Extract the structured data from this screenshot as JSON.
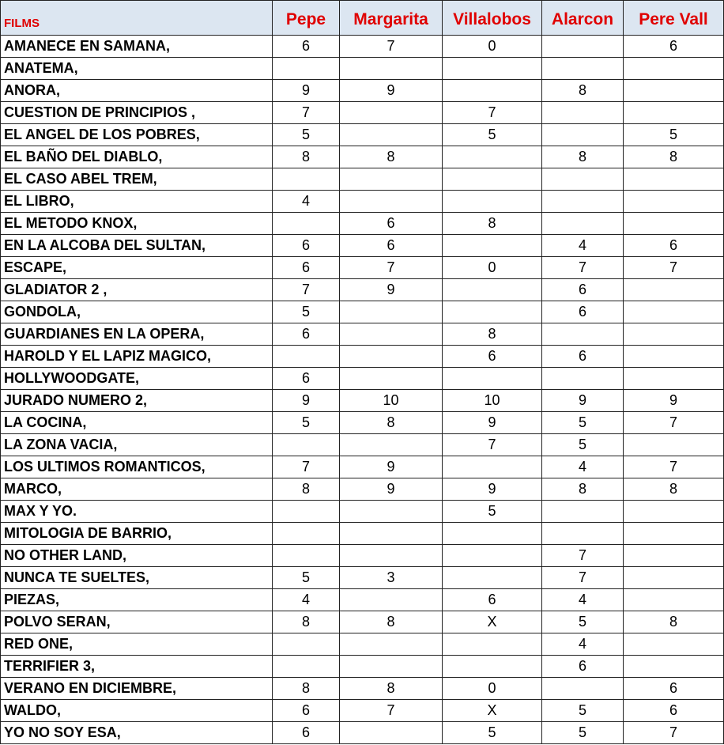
{
  "table": {
    "header": [
      "FILMS",
      "Pepe",
      "Margarita",
      "Villalobos",
      "Alarcon",
      "Pere Vall"
    ],
    "rows": [
      [
        "AMANECE EN SAMANA,",
        6,
        7,
        0,
        null,
        6
      ],
      [
        "ANATEMA,",
        null,
        null,
        null,
        null,
        null
      ],
      [
        "ANORA,",
        9,
        9,
        null,
        8,
        null
      ],
      [
        "CUESTION DE PRINCIPIOS ,",
        7,
        null,
        7,
        null,
        null
      ],
      [
        "EL ANGEL DE LOS POBRES,",
        5,
        null,
        5,
        null,
        5
      ],
      [
        "EL BAÑO DEL DIABLO,",
        8,
        8,
        null,
        8,
        8
      ],
      [
        "EL CASO ABEL TREM,",
        null,
        null,
        null,
        null,
        null
      ],
      [
        "EL LIBRO,",
        4,
        null,
        null,
        null,
        null
      ],
      [
        "EL METODO KNOX,",
        null,
        6,
        8,
        null,
        null
      ],
      [
        "EN LA ALCOBA DEL SULTAN,",
        6,
        6,
        null,
        4,
        6
      ],
      [
        "ESCAPE,",
        6,
        7,
        0,
        7,
        7
      ],
      [
        "GLADIATOR 2 ,",
        7,
        9,
        null,
        6,
        null
      ],
      [
        "GONDOLA,",
        5,
        null,
        null,
        6,
        null
      ],
      [
        "GUARDIANES EN LA OPERA,",
        6,
        null,
        8,
        null,
        null
      ],
      [
        "HAROLD Y EL LAPIZ MAGICO,",
        null,
        null,
        6,
        6,
        null
      ],
      [
        "HOLLYWOODGATE,",
        6,
        null,
        null,
        null,
        null
      ],
      [
        "JURADO NUMERO 2,",
        9,
        10,
        10,
        9,
        9
      ],
      [
        "LA COCINA,",
        5,
        8,
        9,
        5,
        7
      ],
      [
        "LA ZONA VACIA,",
        null,
        null,
        7,
        5,
        null
      ],
      [
        "LOS ULTIMOS ROMANTICOS,",
        7,
        9,
        null,
        4,
        7
      ],
      [
        "MARCO,",
        8,
        9,
        9,
        8,
        8
      ],
      [
        "MAX Y YO.",
        null,
        null,
        5,
        null,
        null
      ],
      [
        "MITOLOGIA DE BARRIO,",
        null,
        null,
        null,
        null,
        null
      ],
      [
        "NO OTHER LAND,",
        null,
        null,
        null,
        7,
        null
      ],
      [
        "NUNCA TE SUELTES,",
        5,
        3,
        null,
        7,
        null
      ],
      [
        "PIEZAS,",
        4,
        null,
        6,
        4,
        null
      ],
      [
        "POLVO SERAN,",
        8,
        8,
        "X",
        5,
        8
      ],
      [
        "RED ONE,",
        null,
        null,
        null,
        4,
        null
      ],
      [
        "TERRIFIER 3,",
        null,
        null,
        null,
        6,
        null
      ],
      [
        "VERANO EN DICIEMBRE,",
        8,
        8,
        0,
        null,
        6
      ],
      [
        "WALDO,",
        6,
        7,
        "X",
        5,
        6
      ],
      [
        "YO NO SOY ESA,",
        6,
        null,
        5,
        5,
        7
      ]
    ]
  }
}
